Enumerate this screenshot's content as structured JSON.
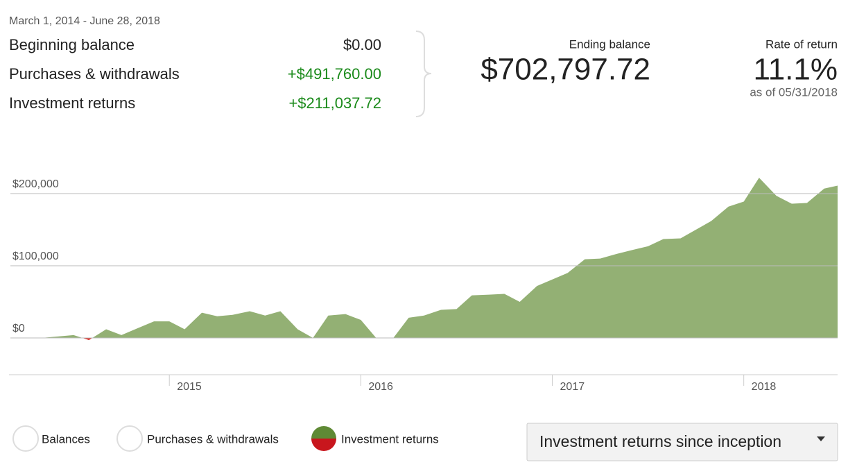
{
  "summary": {
    "date_range": "March 1, 2014 - June 28, 2018",
    "rows": [
      {
        "label": "Beginning balance",
        "value": "$0.00"
      },
      {
        "label": "Purchases & withdrawals",
        "value": "+$491,760.00"
      },
      {
        "label": "Investment returns",
        "value": "+$211,037.72"
      }
    ],
    "ending_balance": {
      "label": "Ending balance",
      "value": "$702,797.72"
    },
    "rate_of_return": {
      "label": "Rate of return",
      "value": "11.1%",
      "as_of": "as of 05/31/2018"
    }
  },
  "chart_data": {
    "type": "area",
    "x": [
      2014.17,
      2014.25,
      2014.33,
      2014.42,
      2014.5,
      2014.58,
      2014.67,
      2014.75,
      2014.83,
      2014.92,
      2015.0,
      2015.08,
      2015.17,
      2015.25,
      2015.33,
      2015.42,
      2015.5,
      2015.58,
      2015.67,
      2015.75,
      2015.83,
      2015.92,
      2016.0,
      2016.08,
      2016.17,
      2016.25,
      2016.33,
      2016.42,
      2016.5,
      2016.58,
      2016.67,
      2016.75,
      2016.83,
      2016.92,
      2017.0,
      2017.08,
      2017.17,
      2017.25,
      2017.33,
      2017.42,
      2017.5,
      2017.58,
      2017.67,
      2017.75,
      2017.83,
      2017.92,
      2018.0,
      2018.08,
      2018.17,
      2018.25,
      2018.33,
      2018.42,
      2018.49
    ],
    "values": [
      0,
      0,
      0,
      2000,
      4000,
      -3000,
      12000,
      4000,
      13000,
      23000,
      23000,
      12000,
      35000,
      30000,
      32000,
      37000,
      31000,
      37000,
      12000,
      0,
      31000,
      33000,
      25000,
      0,
      0,
      28000,
      31000,
      39000,
      40000,
      59000,
      60000,
      61000,
      50000,
      72000,
      81000,
      90000,
      109000,
      110000,
      116000,
      122000,
      127000,
      137000,
      138000,
      150000,
      162000,
      182000,
      189000,
      222000,
      197000,
      186000,
      187000,
      207000,
      211000
    ],
    "positive_color": "#93b074",
    "negative_color": "#d9322c",
    "xlim": [
      2014.17,
      2018.49
    ],
    "xticks": [
      2015,
      2016,
      2017,
      2018
    ],
    "ylim": [
      -50000,
      250000
    ],
    "yticks": [
      {
        "value": 0,
        "label": "$0"
      },
      {
        "value": 100000,
        "label": "$100,000"
      },
      {
        "value": 200000,
        "label": "$200,000"
      }
    ],
    "grid": true
  },
  "legend": [
    "Balances",
    "Purchases & withdrawals",
    "Investment returns"
  ],
  "dropdown": "Investment returns since inception"
}
